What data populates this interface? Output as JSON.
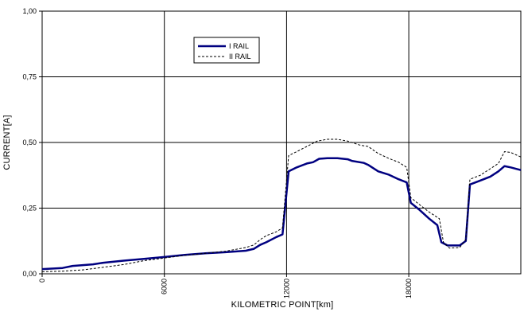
{
  "chart_data": {
    "type": "line",
    "title": "",
    "xlabel": "KILOMETRIC POINT[km]",
    "ylabel": "CURRENT[A]",
    "xlim": [
      0,
      23500
    ],
    "ylim": [
      0,
      1
    ],
    "x_ticks": [
      0,
      6000,
      12000,
      18000
    ],
    "x_tick_labels": [
      "0",
      "6000",
      "12000",
      "18000"
    ],
    "y_ticks": [
      0,
      0.25,
      0.5,
      0.75,
      1
    ],
    "y_tick_labels": [
      "0,00",
      "0,25",
      "0,50",
      "0,75",
      "1,00"
    ],
    "grid": true,
    "legend_position": "top-center",
    "series": [
      {
        "name": "I RAIL",
        "color": "#000080",
        "style": "solid",
        "points": [
          [
            0,
            0.018
          ],
          [
            1000,
            0.022
          ],
          [
            1500,
            0.03
          ],
          [
            2500,
            0.036
          ],
          [
            3000,
            0.042
          ],
          [
            4000,
            0.05
          ],
          [
            5000,
            0.057
          ],
          [
            6000,
            0.064
          ],
          [
            7000,
            0.072
          ],
          [
            8000,
            0.078
          ],
          [
            9000,
            0.082
          ],
          [
            10000,
            0.088
          ],
          [
            10400,
            0.095
          ],
          [
            10700,
            0.11
          ],
          [
            11000,
            0.12
          ],
          [
            11500,
            0.14
          ],
          [
            11800,
            0.15
          ],
          [
            12100,
            0.39
          ],
          [
            12500,
            0.405
          ],
          [
            13000,
            0.42
          ],
          [
            13300,
            0.425
          ],
          [
            13600,
            0.438
          ],
          [
            14000,
            0.44
          ],
          [
            14500,
            0.44
          ],
          [
            15000,
            0.436
          ],
          [
            15200,
            0.43
          ],
          [
            15800,
            0.422
          ],
          [
            16000,
            0.415
          ],
          [
            16500,
            0.39
          ],
          [
            17000,
            0.378
          ],
          [
            17500,
            0.36
          ],
          [
            17900,
            0.348
          ],
          [
            18100,
            0.27
          ],
          [
            18500,
            0.245
          ],
          [
            19000,
            0.21
          ],
          [
            19400,
            0.185
          ],
          [
            19600,
            0.12
          ],
          [
            19900,
            0.108
          ],
          [
            20500,
            0.108
          ],
          [
            20800,
            0.125
          ],
          [
            21000,
            0.34
          ],
          [
            21500,
            0.355
          ],
          [
            22000,
            0.37
          ],
          [
            22400,
            0.39
          ],
          [
            22700,
            0.41
          ],
          [
            23000,
            0.405
          ],
          [
            23500,
            0.395
          ]
        ]
      },
      {
        "name": "II RAIL",
        "color": "#000000",
        "style": "dashed",
        "points": [
          [
            0,
            0.008
          ],
          [
            1000,
            0.01
          ],
          [
            2000,
            0.015
          ],
          [
            3000,
            0.025
          ],
          [
            4000,
            0.035
          ],
          [
            5000,
            0.05
          ],
          [
            6000,
            0.06
          ],
          [
            7000,
            0.07
          ],
          [
            8000,
            0.078
          ],
          [
            9000,
            0.086
          ],
          [
            10000,
            0.1
          ],
          [
            10400,
            0.11
          ],
          [
            10700,
            0.13
          ],
          [
            11000,
            0.145
          ],
          [
            11500,
            0.16
          ],
          [
            11800,
            0.175
          ],
          [
            12100,
            0.45
          ],
          [
            12500,
            0.465
          ],
          [
            13000,
            0.485
          ],
          [
            13500,
            0.505
          ],
          [
            14000,
            0.512
          ],
          [
            14500,
            0.512
          ],
          [
            15000,
            0.505
          ],
          [
            15600,
            0.49
          ],
          [
            16000,
            0.485
          ],
          [
            16500,
            0.458
          ],
          [
            17000,
            0.44
          ],
          [
            17500,
            0.425
          ],
          [
            17900,
            0.405
          ],
          [
            18100,
            0.29
          ],
          [
            18500,
            0.265
          ],
          [
            19000,
            0.235
          ],
          [
            19500,
            0.21
          ],
          [
            19700,
            0.12
          ],
          [
            20000,
            0.098
          ],
          [
            20500,
            0.1
          ],
          [
            20800,
            0.13
          ],
          [
            21000,
            0.36
          ],
          [
            21500,
            0.375
          ],
          [
            22000,
            0.4
          ],
          [
            22400,
            0.42
          ],
          [
            22700,
            0.465
          ],
          [
            23000,
            0.462
          ],
          [
            23500,
            0.445
          ]
        ]
      }
    ]
  }
}
